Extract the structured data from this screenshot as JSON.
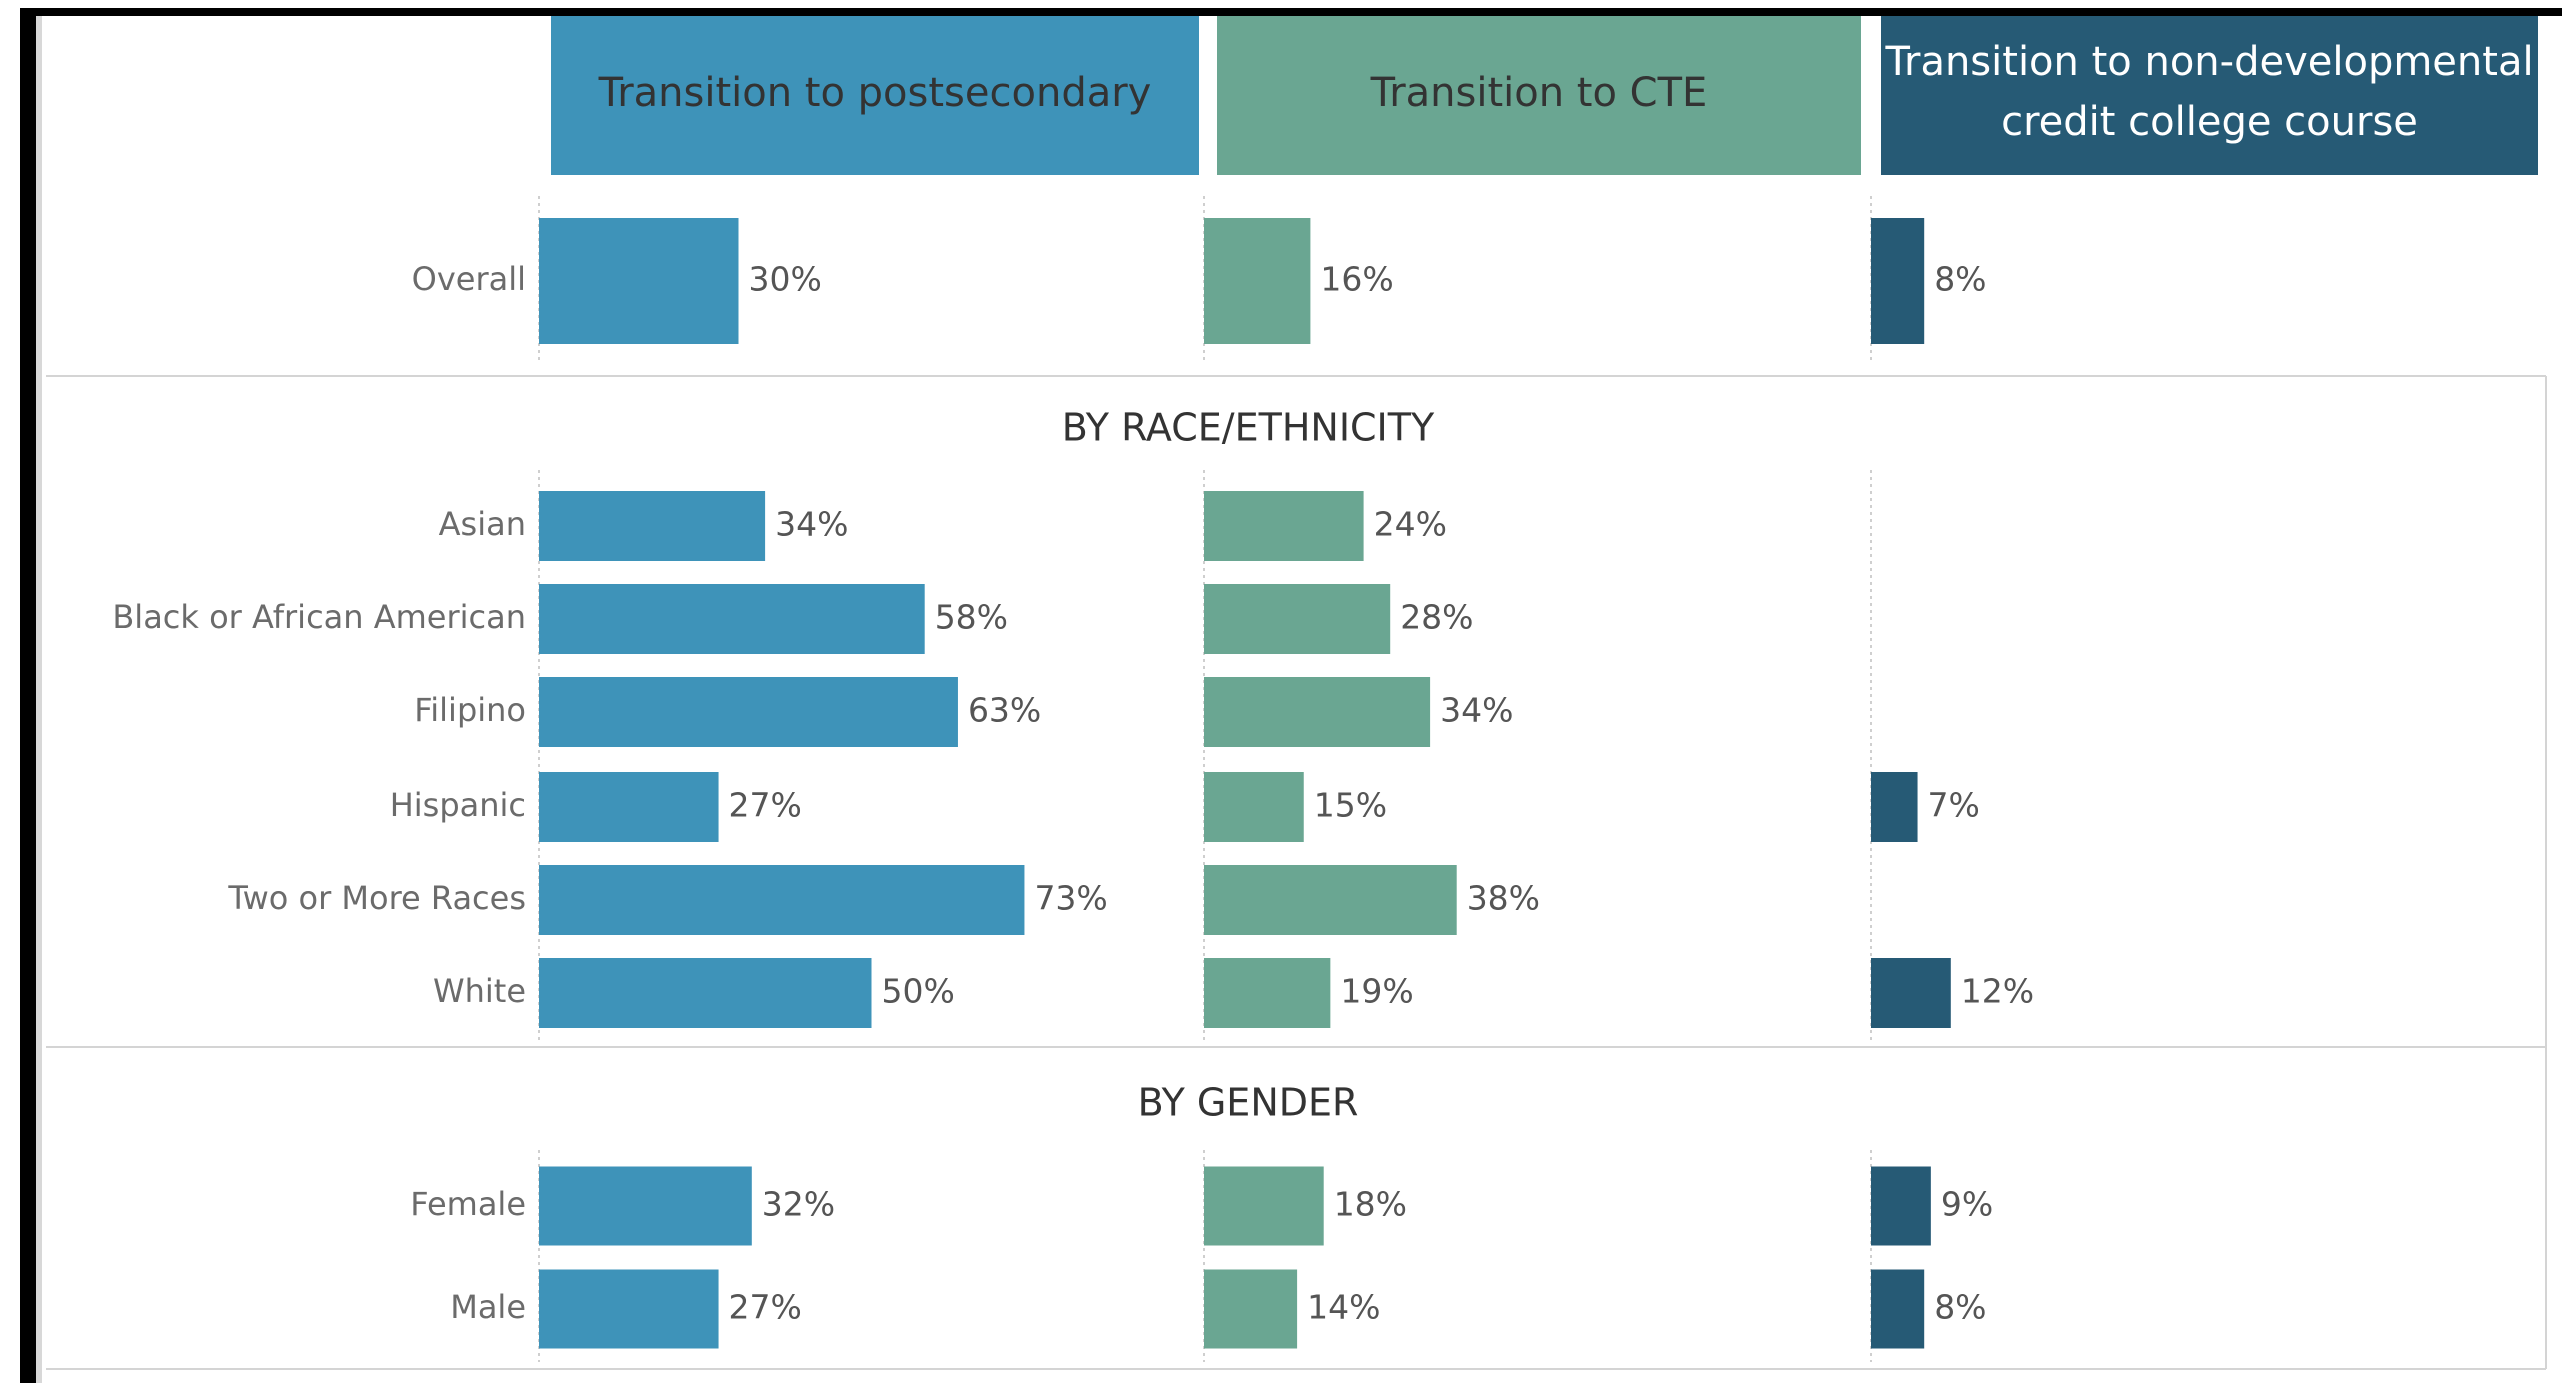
{
  "chart_data": {
    "type": "bar",
    "groups": [
      {
        "categories": [
          "Overall"
        ]
      },
      {
        "title": "BY RACE/ETHNICITY",
        "categories": [
          "Asian",
          "Black or African American",
          "Filipino",
          "Hispanic",
          "Two or More Races",
          "White"
        ]
      },
      {
        "title": "BY GENDER",
        "categories": [
          "Female",
          "Male"
        ]
      }
    ],
    "series": [
      {
        "name": "Transition to postsecondary",
        "color": "#3e93b9",
        "values": [
          [
            30
          ],
          [
            34,
            58,
            63,
            27,
            73,
            50
          ],
          [
            32,
            27
          ]
        ],
        "value_labels": [
          [
            "30%"
          ],
          [
            "34%",
            "58%",
            "63%",
            "27%",
            "73%",
            "50%"
          ],
          [
            "32%",
            "27%"
          ]
        ]
      },
      {
        "name": "Transition to CTE",
        "color": "#6aa692",
        "values": [
          [
            16
          ],
          [
            24,
            28,
            34,
            15,
            38,
            19
          ],
          [
            18,
            14
          ]
        ],
        "value_labels": [
          [
            "16%"
          ],
          [
            "24%",
            "28%",
            "34%",
            "15%",
            "38%",
            "19%"
          ],
          [
            "18%",
            "14%"
          ]
        ]
      },
      {
        "name": [
          "Transition to non-developmental",
          "credit college course"
        ],
        "color": "#265a75",
        "values": [
          [
            8
          ],
          [
            null,
            null,
            null,
            7,
            null,
            12
          ],
          [
            9,
            8
          ]
        ],
        "value_labels": [
          [
            "8%"
          ],
          [
            null,
            null,
            null,
            "7%",
            null,
            "12%"
          ],
          [
            "9%",
            "8%"
          ]
        ]
      }
    ]
  }
}
